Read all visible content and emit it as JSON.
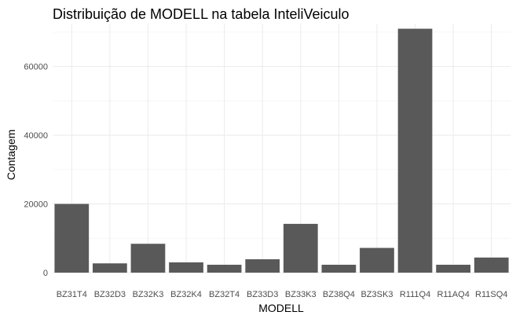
{
  "chart_data": {
    "type": "bar",
    "title": "Distribuição de MODELL na tabela InteliVeiculo",
    "xlabel": "MODELL",
    "ylabel": "Contagem",
    "categories": [
      "BZ31T4",
      "BZ32D3",
      "BZ32K3",
      "BZ32K4",
      "BZ32T4",
      "BZ33D3",
      "BZ33K3",
      "BZ38Q4",
      "BZ3SK3",
      "R111Q4",
      "R11AQ4",
      "R11SQ4"
    ],
    "values": [
      20000,
      2700,
      8400,
      3000,
      2300,
      3900,
      14200,
      2300,
      7200,
      71000,
      2300,
      4400
    ],
    "ylim": [
      0,
      72500
    ],
    "yticks": [
      0,
      20000,
      40000,
      60000
    ],
    "ytick_labels": [
      "0",
      "20000",
      "40000",
      "60000"
    ],
    "grid": true,
    "bar_color": "#595959",
    "theme": "minimal"
  }
}
